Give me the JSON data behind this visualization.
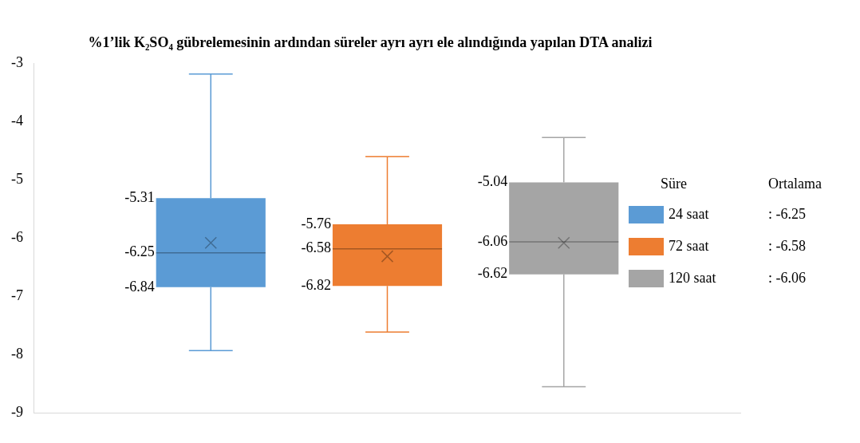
{
  "chart_data": {
    "type": "box",
    "title": "%1’lik K₂SO₄ gübrelemesinin ardından süreler ayrı ayrı ele alındığında yapılan DTA analizi",
    "categories": [
      null
    ],
    "legend_title": "Süre",
    "legend": "right",
    "ylim": [
      -9,
      -3
    ],
    "yticks": [
      -9,
      -8,
      -7,
      -6,
      -5,
      -4,
      -3
    ],
    "grid": false,
    "series": [
      {
        "name": "24 saat",
        "color": "#5b9bd5",
        "boxes": [
          {
            "low": -7.93,
            "q1": -6.84,
            "median": -6.25,
            "q3": -5.31,
            "high": -3.18,
            "mean": -6.08
          }
        ]
      },
      {
        "name": "72 saat",
        "color": "#ed7d31",
        "boxes": [
          {
            "low": -7.61,
            "q1": -6.82,
            "median": -6.18,
            "q3": -5.76,
            "high": -4.6,
            "mean": -6.31
          }
        ]
      },
      {
        "name": "120 saat",
        "color": "#a5a5a5",
        "boxes": [
          {
            "low": -8.55,
            "q1": -6.62,
            "median": -6.06,
            "q3": -5.04,
            "high": -4.27,
            "mean": -6.08
          }
        ]
      }
    ],
    "annotations": [
      "-5.31",
      "-6.25",
      "-6.84",
      "-5.76",
      "-6.58",
      "-6.82",
      "-5.04",
      "-6.06",
      "-6.62",
      "Ortalama",
      ": -6.25",
      ": -6.58",
      ": -6.06"
    ]
  }
}
